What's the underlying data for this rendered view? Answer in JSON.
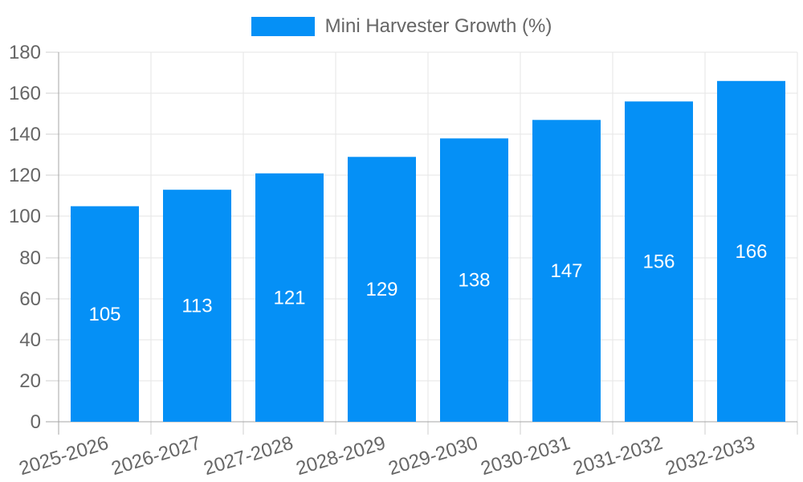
{
  "chart_data": {
    "type": "bar",
    "title": "Mini Harvester Growth (%)",
    "legend_position": "top",
    "categories": [
      "2025-2026",
      "2026-2027",
      "2027-2028",
      "2028-2029",
      "2029-2030",
      "2030-2031",
      "2031-2032",
      "2032-2033"
    ],
    "values": [
      105,
      113,
      121,
      129,
      138,
      147,
      156,
      166
    ],
    "xlabel": "",
    "ylabel": "",
    "ylim": [
      0,
      180
    ],
    "ytick_step": 20,
    "grid": true,
    "bar_color": "#0590f6",
    "value_label_color": "#ffffff",
    "colors": {
      "grid": "#e6e6e6",
      "tick": "#cfcfcf",
      "axis_border": "#a6a6a6",
      "tick_label": "#666666",
      "legend_text": "#666666",
      "background": "#ffffff"
    }
  }
}
